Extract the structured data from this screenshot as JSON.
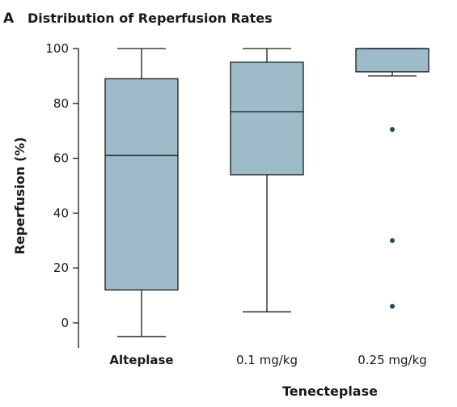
{
  "panel": {
    "letter": "A",
    "title": "Distribution of Reperfusion Rates"
  },
  "chart_data": {
    "type": "box",
    "title": "Distribution of Reperfusion Rates",
    "ylabel": "Reperfusion (%)",
    "xlabel": "Tenecteplase",
    "ylim": [
      -5,
      100
    ],
    "yticks": [
      0,
      20,
      40,
      60,
      80,
      100
    ],
    "grid": false,
    "box_color": "#9dbbc8",
    "outlier_color": "#1e4b5e",
    "categories": [
      "Alteplase",
      "0.1 mg/kg",
      "0.25 mg/kg"
    ],
    "bold_categories": [
      "Alteplase"
    ],
    "boxes": [
      {
        "category": "Alteplase",
        "whisker_low": -5,
        "q1": 12,
        "median": 61,
        "q3": 89,
        "whisker_high": 100,
        "outliers": []
      },
      {
        "category": "0.1 mg/kg",
        "whisker_low": 4,
        "q1": 54,
        "median": 77,
        "q3": 95,
        "whisker_high": 100,
        "outliers": []
      },
      {
        "category": "0.25 mg/kg",
        "whisker_low": 90,
        "q1": 91.5,
        "median": 100,
        "q3": 100,
        "whisker_high": 100,
        "outliers": [
          70.5,
          30,
          6
        ]
      }
    ]
  }
}
